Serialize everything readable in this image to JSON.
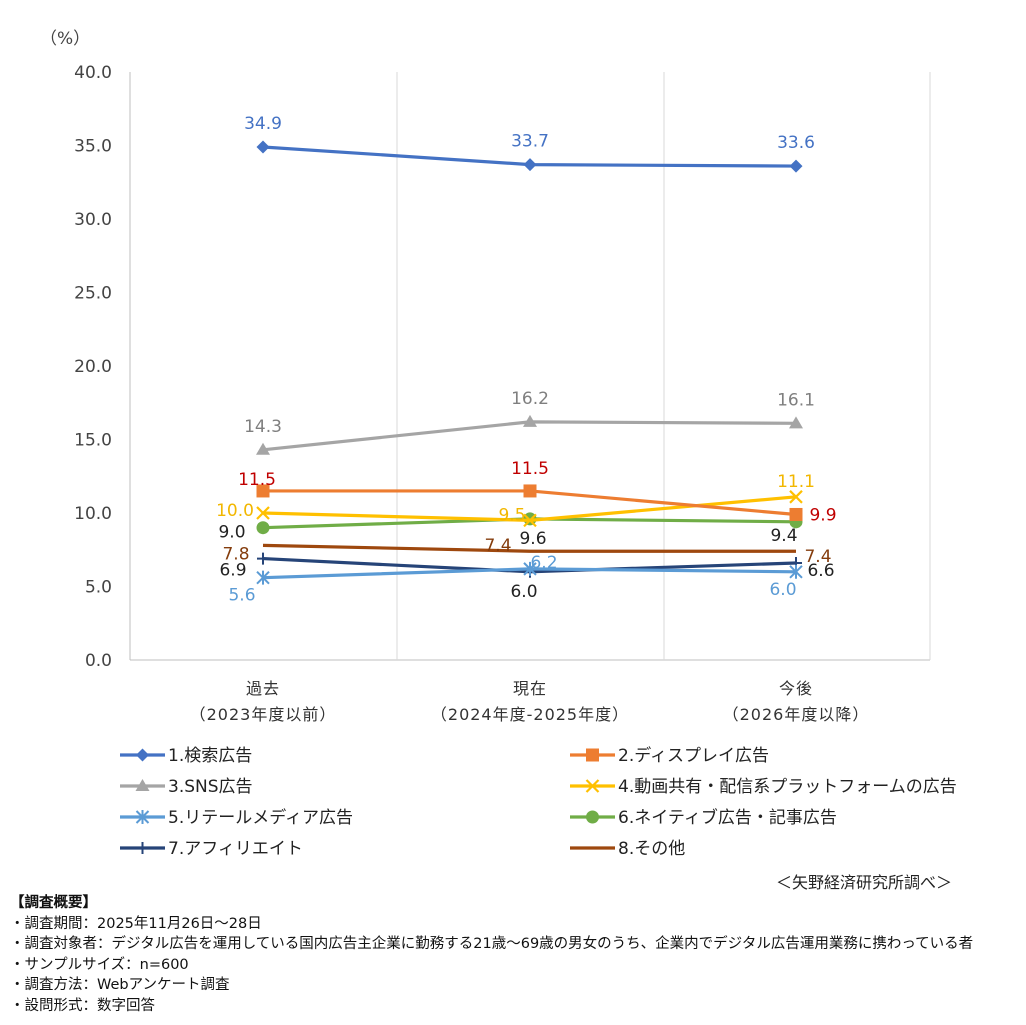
{
  "chart_data": {
    "type": "line",
    "unit_label": "（%）",
    "ylim": [
      0,
      40
    ],
    "yticks": [
      "0.0",
      "5.0",
      "10.0",
      "15.0",
      "20.0",
      "25.0",
      "30.0",
      "35.0",
      "40.0"
    ],
    "categories": [
      [
        "過去",
        "（2023年度以前）"
      ],
      [
        "現在",
        "（2024年度-2025年度）"
      ],
      [
        "今後",
        "（2026年度以降）"
      ]
    ],
    "grid": "vertical",
    "legend_position": "bottom",
    "series": [
      {
        "name": "1.検索広告",
        "color": "#4472C4",
        "marker": "diamond",
        "values": [
          34.9,
          33.7,
          33.6
        ],
        "labels": [
          "34.9",
          "33.7",
          "33.6"
        ],
        "label_color": "#4472C4"
      },
      {
        "name": "2.ディスプレイ広告",
        "color": "#ED7D31",
        "marker": "square",
        "values": [
          11.5,
          11.5,
          9.9
        ],
        "labels": [
          "11.5",
          "11.5",
          "9.9"
        ],
        "label_color": "#C00000"
      },
      {
        "name": "3.SNS広告",
        "color": "#A5A5A5",
        "marker": "triangle",
        "values": [
          14.3,
          16.2,
          16.1
        ],
        "labels": [
          "14.3",
          "16.2",
          "16.1"
        ],
        "label_color": "#7F7F7F"
      },
      {
        "name": "4.動画共有・配信系プラットフォームの広告",
        "color": "#FFC000",
        "marker": "x",
        "values": [
          10.0,
          9.5,
          11.1
        ],
        "labels": [
          "10.0",
          "9.5",
          "11.1"
        ],
        "label_color": "#F2B700"
      },
      {
        "name": "5.リテールメディア広告",
        "color": "#5B9BD5",
        "marker": "star",
        "values": [
          5.6,
          6.2,
          6.0
        ],
        "labels": [
          "5.6",
          "6.2",
          "6.0"
        ],
        "label_color": "#5B9BD5"
      },
      {
        "name": "6.ネイティブ広告・記事広告",
        "color": "#70AD47",
        "marker": "circle",
        "values": [
          9.0,
          9.6,
          9.4
        ],
        "labels": [
          "9.0",
          "9.6",
          "9.4"
        ],
        "label_color": "#222222"
      },
      {
        "name": "7.アフィリエイト",
        "color": "#264478",
        "marker": "plus",
        "values": [
          6.9,
          6.0,
          6.6
        ],
        "labels": [
          "6.9",
          "6.0",
          "6.6"
        ],
        "label_color": "#222222"
      },
      {
        "name": "8.その他",
        "color": "#9E480E",
        "marker": "none",
        "values": [
          7.8,
          7.4,
          7.4
        ],
        "labels": [
          "7.8",
          "7.4",
          "7.4"
        ],
        "label_color": "#843C0C"
      }
    ]
  },
  "source": "＜矢野経済研究所調べ＞",
  "survey": {
    "heading": "【調査概要】",
    "lines": [
      "・調査期間：2025年11月26日～28日",
      "・調査対象者：デジタル広告を運用している国内広告主企業に勤務する21歳～69歳の男女のうち、企業内でデジタル広告運用業務に携わっている者",
      "・サンプルサイズ：n=600",
      "・調査方法：Webアンケート調査",
      "・設問形式：数字回答"
    ]
  }
}
